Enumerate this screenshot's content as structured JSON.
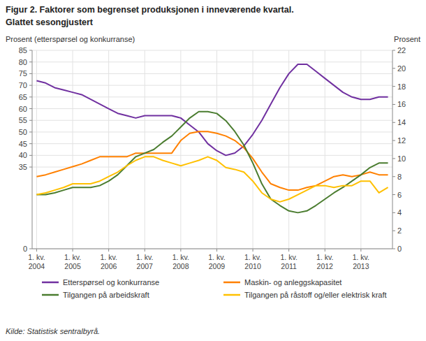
{
  "chart_data": {
    "type": "line",
    "title": "Figur 2. Faktorer som begrenset produksjonen i inneværende kvartal.",
    "subtitle": "Glattet sesongjustert",
    "ylabel": "Prosent (etterspørsel og konkurranse)",
    "y2label": "Prosent",
    "source": "Kilde: Statistisk sentralbyrå.",
    "categories": [
      "1. kv.\n2004",
      null,
      null,
      null,
      "1. kv.\n2005",
      null,
      null,
      null,
      "1. kv.\n2006",
      null,
      null,
      null,
      "1. kv.\n2007",
      null,
      null,
      null,
      "1. kv.\n2008",
      null,
      null,
      null,
      "1. kv.\n2009",
      null,
      null,
      null,
      "1. kv.\n2010",
      null,
      null,
      null,
      "1. kv.\n2011",
      null,
      null,
      null,
      "1. kv.\n2012",
      null,
      null,
      null,
      "1. kv.\n2013",
      null,
      null,
      null
    ],
    "ylim": [
      0,
      85
    ],
    "yticks": [
      0,
      35,
      40,
      45,
      50,
      55,
      60,
      65,
      70,
      75,
      80,
      85
    ],
    "y2lim": [
      0,
      22
    ],
    "y2ticks": [
      0,
      2,
      4,
      6,
      8,
      10,
      12,
      14,
      16,
      18,
      20,
      22
    ],
    "grid": true,
    "legend": "bottom",
    "series": [
      {
        "name": "Etterspørsel og konkurranse",
        "color": "#7030A0",
        "axis": "y",
        "values": [
          72,
          71,
          69,
          68,
          67,
          66,
          64,
          62,
          60,
          58,
          57,
          56,
          57,
          57,
          57,
          57,
          56,
          53,
          50,
          45,
          42,
          40,
          41,
          44,
          49,
          55,
          62,
          69,
          75,
          79,
          79,
          76,
          73,
          70,
          67,
          65,
          64,
          64,
          65,
          65
        ]
      },
      {
        "name": "Maskin- og anleggskapasitet",
        "color": "#FF8000",
        "axis": "y2",
        "values": [
          8.0,
          8.2,
          8.5,
          8.8,
          9.1,
          9.4,
          9.8,
          10.2,
          10.2,
          10.2,
          10.2,
          10.6,
          10.6,
          10.6,
          10.6,
          10.6,
          12.0,
          12.8,
          13.0,
          13.0,
          12.8,
          12.5,
          12.0,
          11.2,
          10.0,
          8.5,
          7.2,
          6.8,
          6.5,
          6.5,
          6.8,
          7.0,
          7.5,
          8.0,
          8.2,
          8.0,
          8.2,
          8.5,
          8.2,
          8.2
        ]
      },
      {
        "name": "Tilgangen på arbeidskraft",
        "color": "#4A7C2F",
        "axis": "y2",
        "values": [
          6.0,
          6.0,
          6.2,
          6.5,
          6.8,
          6.8,
          6.8,
          7.0,
          7.5,
          8.2,
          9.2,
          10.2,
          10.6,
          11.0,
          11.8,
          12.5,
          13.5,
          14.5,
          15.2,
          15.2,
          15.0,
          14.2,
          13.0,
          11.5,
          9.5,
          7.2,
          5.5,
          4.8,
          4.2,
          4.0,
          4.2,
          4.8,
          5.5,
          6.2,
          6.8,
          7.5,
          8.2,
          9.0,
          9.5,
          9.5
        ]
      },
      {
        "name": "Tilgangen på råstoff og/eller elektrisk kraft",
        "color": "#FFC000",
        "axis": "y2",
        "values": [
          6.0,
          6.2,
          6.5,
          6.8,
          7.2,
          7.2,
          7.2,
          7.5,
          8.0,
          8.5,
          9.2,
          9.8,
          10.2,
          10.2,
          9.8,
          9.5,
          9.2,
          9.5,
          9.8,
          10.2,
          9.8,
          9.0,
          8.8,
          8.5,
          7.5,
          6.2,
          5.5,
          5.2,
          5.5,
          6.0,
          6.5,
          7.0,
          7.0,
          6.8,
          7.0,
          7.0,
          7.5,
          7.5,
          6.2,
          6.8
        ]
      }
    ]
  }
}
